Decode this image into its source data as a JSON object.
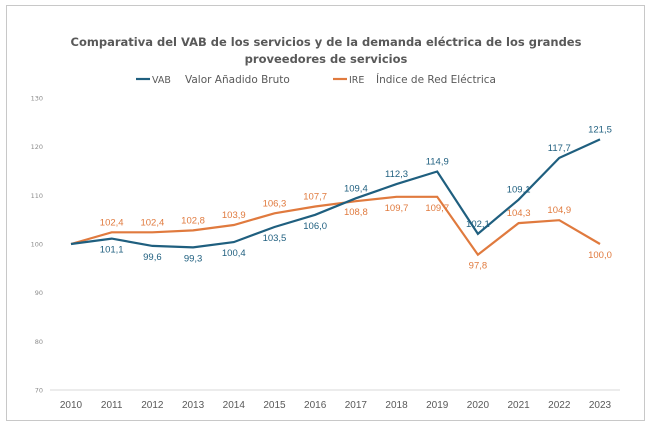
{
  "chart_data": {
    "type": "line",
    "title_lines": [
      "Comparativa del VAB de los servicios y de la demanda eléctrica de los grandes",
      "proveedores de servicios"
    ],
    "xlabel": "",
    "ylabel": "",
    "x": [
      "2010",
      "2011",
      "2012",
      "2013",
      "2014",
      "2015",
      "2016",
      "2017",
      "2018",
      "2019",
      "2020",
      "2021",
      "2022",
      "2023"
    ],
    "ylim": [
      70,
      130
    ],
    "yticks": [
      "70",
      "80",
      "90",
      "100",
      "110",
      "120",
      "130"
    ],
    "ytick_values": [
      70,
      80,
      90,
      100,
      110,
      120,
      130
    ],
    "grid": false,
    "legend_position": "top-center",
    "series": [
      {
        "name": "VAB",
        "legend_code": "VAB",
        "legend_text": "Valor Añadido Bruto",
        "color": "#1f5f7f",
        "values": [
          100.0,
          101.1,
          99.6,
          99.3,
          100.4,
          103.5,
          106.0,
          109.4,
          112.3,
          114.9,
          102.1,
          109.1,
          117.7,
          121.5
        ],
        "labels": [
          "",
          "101,1",
          "99,6",
          "99,3",
          "100,4",
          "103,5",
          "106,0",
          "109,4",
          "112,3",
          "114,9",
          "102,1",
          "109,1",
          "117,7",
          "121,5"
        ],
        "label_side": [
          "",
          "below",
          "below",
          "below",
          "below",
          "below",
          "below",
          "above",
          "above",
          "above",
          "above",
          "above",
          "above",
          "above"
        ]
      },
      {
        "name": "IRE",
        "legend_code": "IRE",
        "legend_text": "Índice de Red Eléctrica",
        "color": "#e07a3e",
        "values": [
          100.0,
          102.4,
          102.4,
          102.8,
          103.9,
          106.3,
          107.7,
          108.8,
          109.7,
          109.7,
          97.8,
          104.3,
          104.9,
          100.0
        ],
        "labels": [
          "",
          "102,4",
          "102,4",
          "102,8",
          "103,9",
          "106,3",
          "107,7",
          "108,8",
          "109,7",
          "109,7",
          "97,8",
          "104,3",
          "104,9",
          "100,0"
        ],
        "label_side": [
          "",
          "above",
          "above",
          "above",
          "above",
          "above",
          "above",
          "below",
          "below",
          "below",
          "below",
          "above",
          "above",
          "below"
        ]
      }
    ]
  }
}
